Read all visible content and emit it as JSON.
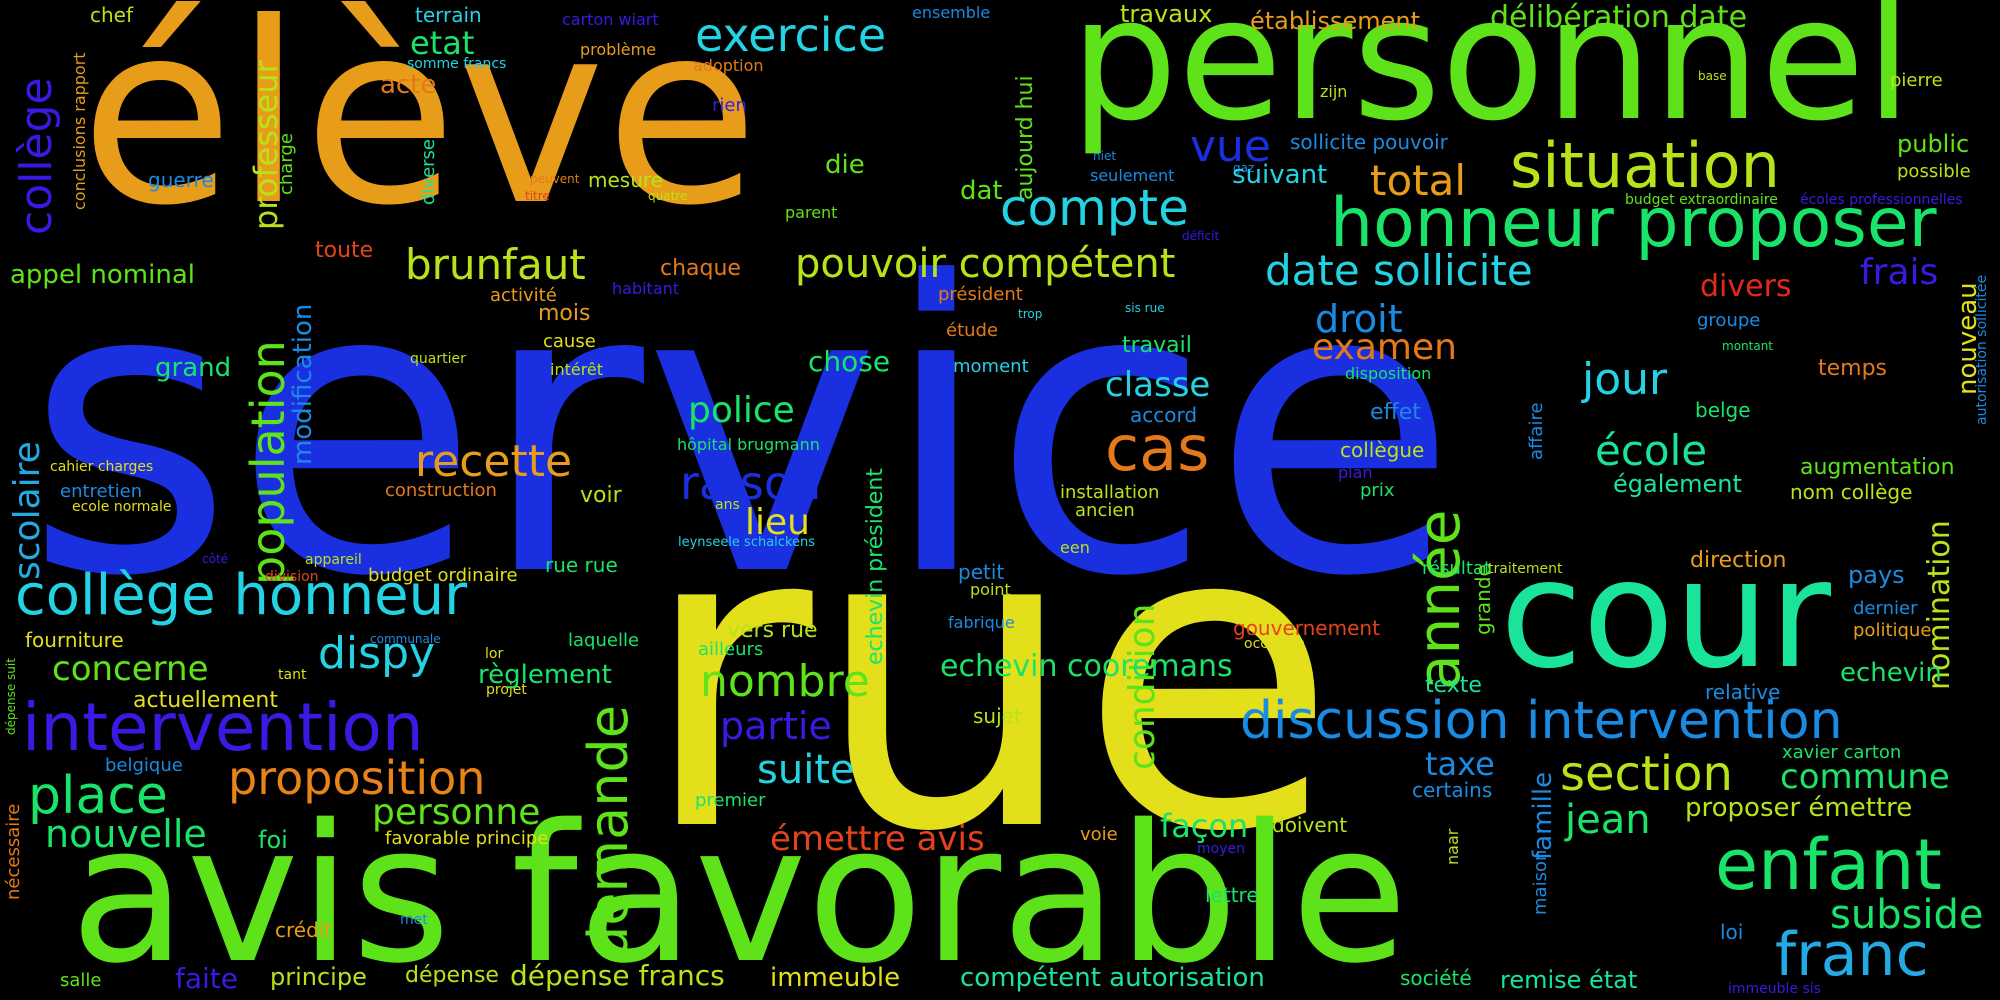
{
  "colors": {
    "background": "#000000",
    "blue": "#1a2fe0",
    "yellow": "#e3df1a",
    "green": "#5ee31a",
    "orange": "#e89d1a",
    "teal": "#1ae39a",
    "cyan": "#23d3e3",
    "purple": "#3a1ae3",
    "red": "#e3431a",
    "lime": "#b8e31a",
    "mint": "#1ae36a",
    "skyblue": "#1a8be3"
  },
  "words": [
    "service",
    "rue",
    "élève",
    "personnel",
    "avis favorable",
    "cour",
    "honneur proposer",
    "situation",
    "exercice",
    "compte",
    "collège honneur",
    "intervention",
    "discussion intervention",
    "brunfaut",
    "pouvoir compétent",
    "date sollicite",
    "recette",
    "raison",
    "cas",
    "année",
    "demande",
    "population",
    "enfant",
    "franc",
    "subside",
    "section",
    "commune",
    "jean",
    "proposer émettre",
    "place",
    "nouvelle",
    "proposition",
    "personne",
    "émettre avis",
    "suite",
    "partie",
    "nombre",
    "dispy",
    "concerne",
    "police",
    "lieu",
    "classe",
    "jour",
    "école",
    "droit",
    "examen",
    "taxe",
    "frais",
    "divers",
    "vue",
    "total",
    "collège",
    "scolaire",
    "professeur",
    "appel nominal",
    "modification",
    "condition",
    "chose",
    "travaux",
    "établissement",
    "délibération date",
    "pierre",
    "public",
    "possible",
    "budget extraordinaire",
    "écoles professionnelles",
    "nouveau",
    "nomination",
    "autorisation sollicitée",
    "temps",
    "augmentation",
    "nom collège",
    "également",
    "pays",
    "dernier",
    "politique",
    "echevin",
    "relative",
    "xavier carton",
    "certains",
    "famille",
    "maison",
    "loi",
    "immeuble sis",
    "remise état",
    "société",
    "compétent autorisation",
    "dépense francs",
    "immeuble",
    "dépense",
    "principe",
    "faite",
    "salle",
    "crédit",
    "met",
    "favorable principe",
    "foi",
    "belgique",
    "nécessaire",
    "dépense suit",
    "actuellement",
    "fourniture",
    "tant",
    "communale",
    "division",
    "appareil",
    "budget ordinaire",
    "côté",
    "ecole normale",
    "entretien",
    "cahier charges",
    "construction",
    "quartier",
    "grand",
    "toute",
    "chef",
    "terrain",
    "etat",
    "somme francs",
    "carton wiart",
    "ensemble",
    "problème",
    "adoption",
    "acte",
    "rien",
    "guerre",
    "conclusions rapport",
    "charge",
    "diverse",
    "aujourd hui",
    "peuvent",
    "titre",
    "mesure",
    "quatre",
    "die",
    "dat",
    "parent",
    "déficit",
    "seulement",
    "gaz",
    "niet",
    "sollicite pouvoir",
    "zijn",
    "suivant",
    "base",
    "groupe",
    "montant",
    "belge",
    "affaire",
    "plan",
    "prix",
    "collègue",
    "effet",
    "accord",
    "travail",
    "disposition",
    "sis rue",
    "trop",
    "président",
    "étude",
    "moment",
    "habitant",
    "activité",
    "chaque",
    "cause",
    "mois",
    "intérêt",
    "hôpital brugmann",
    "echevin président",
    "ans",
    "voir",
    "leynseele schalckens",
    "rue rue",
    "laquelle",
    "lor",
    "projet",
    "règlement",
    "ailleurs",
    "vers rue",
    "fabrique",
    "point",
    "petit",
    "sujet",
    "echevin cooremans",
    "premier",
    "installation",
    "ancien",
    "een",
    "façon",
    "voie",
    "moyen",
    "doivent",
    "lettre",
    "naar",
    "résultat",
    "traitement",
    "grande",
    "direction",
    "gouvernement",
    "occasion",
    "texte"
  ]
}
